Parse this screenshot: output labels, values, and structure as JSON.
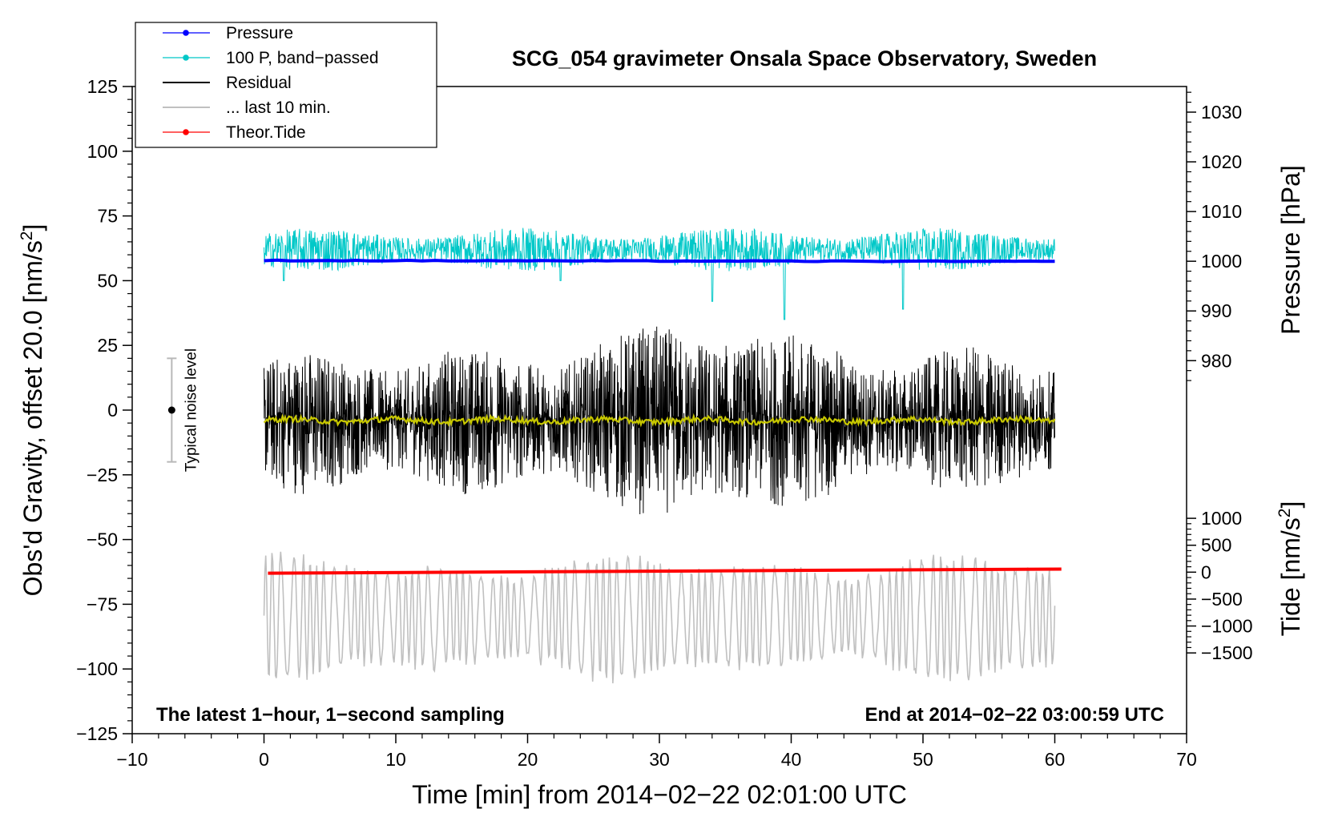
{
  "chart_data": {
    "type": "line",
    "title": "SCG_054 gravimeter Onsala Space Observatory, Sweden",
    "xlabel": "Time [min] from 2014−02−22 02:01:00 UTC",
    "ylabel_left_main": "Obs'd Gravity, offset 20.0 [nm/s",
    "ylabel_left_sup": "2",
    "ylabel_left_end": "]",
    "ylabel_right_pressure": "Pressure [hPa]",
    "ylabel_right_tide_main": "Tide [nm/s",
    "ylabel_right_tide_sup": "2",
    "ylabel_right_tide_end": "]",
    "xlim": [
      -10,
      70
    ],
    "ylim": [
      -125,
      125
    ],
    "x_ticks": [
      -10,
      0,
      10,
      20,
      30,
      40,
      50,
      60,
      70
    ],
    "x_tick_labels": [
      "−10",
      "0",
      "10",
      "20",
      "30",
      "40",
      "50",
      "60",
      "70"
    ],
    "y_ticks": [
      125,
      100,
      75,
      50,
      25,
      0,
      -25,
      -50,
      -75,
      -100,
      -125
    ],
    "y_tick_labels": [
      "125",
      "100",
      "75",
      "50",
      "25",
      "0",
      "−25",
      "−50",
      "−75",
      "−100",
      "−125"
    ],
    "pressure_ticks": [
      1030,
      1020,
      1010,
      1000,
      990,
      980
    ],
    "pressure_tick_labels": [
      "1030",
      "1020",
      "1010",
      "1000",
      "990",
      "980"
    ],
    "pressure_axis_map": {
      "y_at_1000": 57.5,
      "y_per_hPa": 1.92
    },
    "tide_ticks": [
      1000,
      500,
      0,
      -500,
      -1000,
      -1500
    ],
    "tide_tick_labels": [
      "1000",
      "500",
      "0",
      "−500",
      "−1000",
      "−1500"
    ],
    "tide_axis_map": {
      "y_at_0": -62.6,
      "y_per_unit": 0.0208
    },
    "footnote_left": "The latest 1−hour, 1−second sampling",
    "footnote_right": "End at 2014−02−22 03:00:59 UTC",
    "noise_indicator": {
      "label": "Typical noise level",
      "x": -7,
      "center": 0,
      "low": -20,
      "high": 20
    },
    "legend": [
      {
        "label": "Pressure",
        "color": "#0000ff",
        "marker": true
      },
      {
        "label": "100 P, band−passed",
        "color": "#00c8c8",
        "marker": true
      },
      {
        "label": "Residual",
        "color": "#000000",
        "marker": false
      },
      {
        "label": "... last 10 min.",
        "color": "#c0c0c0",
        "marker": false
      },
      {
        "label": "Theor.Tide",
        "color": "#ff0000",
        "marker": true
      }
    ],
    "series": [
      {
        "name": "Pressure",
        "color": "#0000ff",
        "x_range": [
          0,
          60
        ],
        "values_start_end": [
          57.8,
          57.4
        ],
        "approx_hPa": 1000
      },
      {
        "name": "100 P, band−passed",
        "color": "#00c8c8",
        "x_range": [
          0,
          60
        ],
        "mean": 62,
        "noise_amplitude": 8,
        "spikes": [
          {
            "x": 34,
            "y": 42
          },
          {
            "x": 39.5,
            "y": 35
          },
          {
            "x": 48.5,
            "y": 39
          },
          {
            "x": 1.5,
            "y": 50
          },
          {
            "x": 22.5,
            "y": 50
          }
        ]
      },
      {
        "name": "Residual",
        "color": "#000000",
        "x_range": [
          0,
          60
        ],
        "mean": -4,
        "noise_amplitude": 22,
        "max": 44,
        "min": -53
      },
      {
        "name": "Residual smoothed",
        "color": "#c8c800",
        "x_range": [
          0,
          60
        ],
        "mean": -4
      },
      {
        "name": "... last 10 min.",
        "color": "#c0c0c0",
        "x_range": [
          0,
          60
        ],
        "mean": -80,
        "oscillation_amplitude": 15,
        "max": -44,
        "min": -110
      },
      {
        "name": "Theor.Tide",
        "color": "#ff0000",
        "x_range": [
          0.3,
          60.5
        ],
        "values_start_end": [
          -63,
          -61.4
        ]
      }
    ]
  }
}
